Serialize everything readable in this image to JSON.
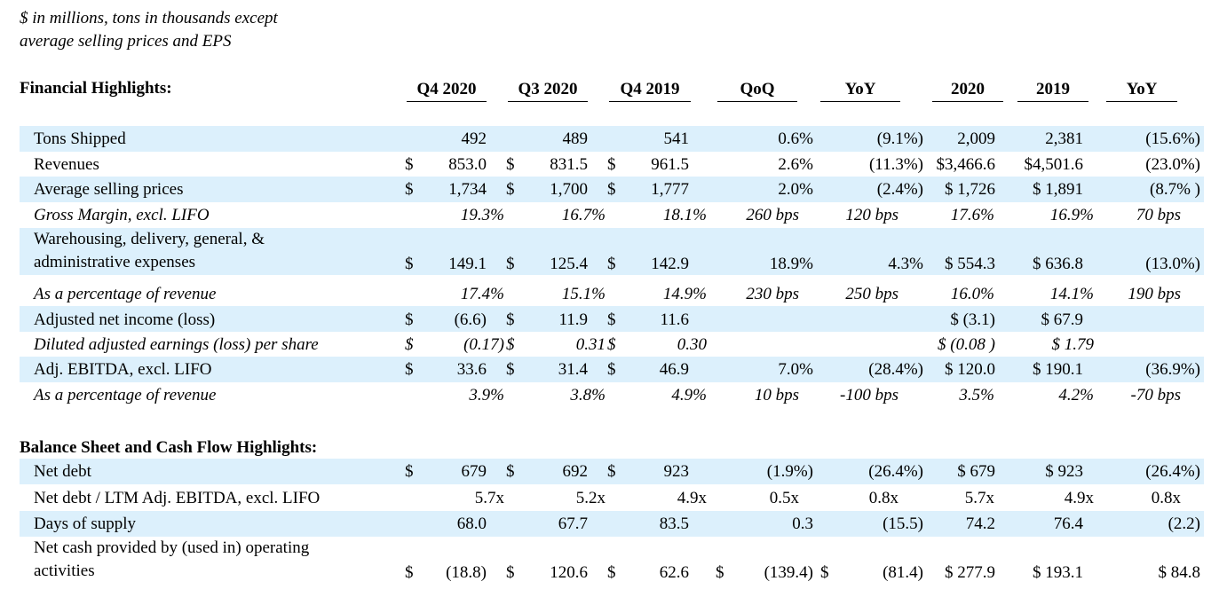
{
  "note": [
    "$ in millions, tons in thousands except",
    "average selling prices and EPS"
  ],
  "section1_title": "Financial Highlights:",
  "section2_title": "Balance Sheet and Cash Flow Highlights:",
  "columns": [
    "Q4 2020",
    "Q3 2020",
    "Q4 2019",
    "QoQ",
    "YoY",
    "2020",
    "2019",
    "YoY"
  ],
  "rows": [
    {
      "label": "Tons Shipped",
      "cells": [
        "492",
        "489",
        "541",
        "0.6%",
        "(9.1%)",
        "2,009",
        "2,381",
        "(15.6%)"
      ]
    },
    {
      "label": "Revenues",
      "cells": [
        "853.0",
        "831.5",
        "961.5",
        "2.6%",
        "(11.3%)",
        "$3,466.6",
        "$4,501.6",
        "(23.0%)"
      ],
      "d": [
        "$",
        "$",
        "$"
      ]
    },
    {
      "label": "Average selling prices",
      "cells": [
        "1,734",
        "1,700",
        "1,777",
        "2.0%",
        "(2.4%)",
        "$ 1,726",
        "$ 1,891",
        "(8.7% )"
      ],
      "d": [
        "$",
        "$",
        "$"
      ]
    },
    {
      "label": "Gross Margin, excl. LIFO",
      "cells": [
        "19.3%",
        "16.7%",
        "18.1%",
        "260 bps",
        "120 bps",
        "17.6%",
        "16.9%",
        "70 bps"
      ]
    },
    {
      "label": [
        "Warehousing, delivery, general, &",
        "administrative expenses"
      ],
      "cells": [
        "149.1",
        "125.4",
        "142.9",
        "18.9%",
        "4.3%",
        "$ 554.3",
        "$ 636.8",
        "(13.0%)"
      ],
      "d": [
        "$",
        "$",
        "$"
      ]
    },
    {
      "label": "As a percentage of revenue",
      "cells": [
        "17.4%",
        "15.1%",
        "14.9%",
        "230 bps",
        "250 bps",
        "16.0%",
        "14.1%",
        "190 bps"
      ]
    },
    {
      "label": "Adjusted net income (loss)",
      "cells": [
        "(6.6)",
        "11.9",
        "11.6",
        "",
        "",
        "$       (3.1)",
        "$  67.9",
        ""
      ],
      "d": [
        "$",
        "$",
        "$"
      ]
    },
    {
      "label": "Diluted adjusted earnings (loss) per share",
      "cells": [
        "(0.17)",
        "0.31",
        "0.30",
        "",
        "",
        "$  (0.08  )",
        "$  1.79",
        ""
      ],
      "d": [
        "$",
        "$",
        "$"
      ]
    },
    {
      "label": "Adj. EBITDA, excl. LIFO",
      "cells": [
        "33.6",
        "31.4",
        "46.9",
        "7.0%",
        "(28.4%)",
        "$ 120.0",
        "$ 190.1",
        "(36.9%)"
      ],
      "d": [
        "$",
        "$",
        "$"
      ]
    },
    {
      "label": "As a percentage of revenue",
      "cells": [
        "3.9%",
        "3.8%",
        "4.9%",
        "10 bps",
        "-100 bps",
        "3.5%",
        "4.2%",
        "-70 bps"
      ]
    },
    {
      "label": "Net debt",
      "cells": [
        "679",
        "692",
        "923",
        "(1.9%)",
        "(26.4%)",
        "$   679",
        "$   923",
        "(26.4%)"
      ],
      "d": [
        "$",
        "$",
        "$"
      ]
    },
    {
      "label": "Net debt / LTM Adj. EBITDA, excl. LIFO",
      "cells": [
        "5.7x",
        "5.2x",
        "4.9x",
        "0.5x",
        "0.8x",
        "5.7x",
        "4.9x",
        "0.8x"
      ]
    },
    {
      "label": "Days of supply",
      "cells": [
        "68.0",
        "67.7",
        "83.5",
        "0.3",
        "(15.5)",
        "74.2",
        "76.4",
        "(2.2)"
      ]
    },
    {
      "label": [
        "Net cash provided by (used in) operating",
        "activities"
      ],
      "cells": [
        "(18.8)",
        "120.6",
        "62.6",
        "(139.4)",
        "(81.4)",
        "$ 277.9",
        "$ 193.1",
        "$  84.8"
      ],
      "d": [
        "$",
        "$",
        "$",
        "$",
        "$"
      ]
    }
  ]
}
